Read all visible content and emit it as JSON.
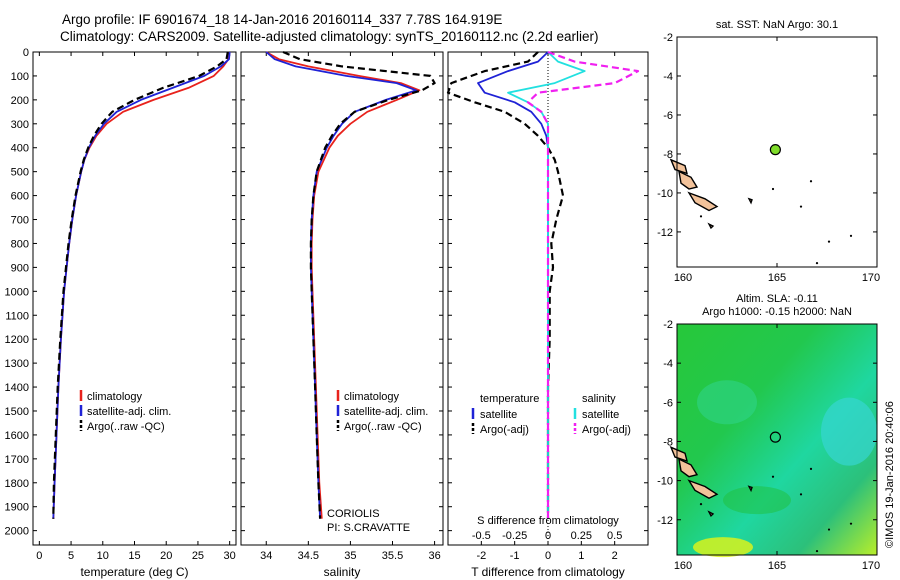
{
  "header": {
    "line1": "Argo profile: IF 6901674_18 14-Jan-2016 20160114_337 7.78S 164.919E",
    "line2": "Climatology: CARS2009. Satellite-adjusted climatology: synTS_20160112.nc (2.2d earlier)"
  },
  "colors": {
    "climatology": "#e8221c",
    "satellite": "#1f22d6",
    "argo": "#000000",
    "sat_salinity": "#22e0e0",
    "argo_salinity": "#f020f0",
    "land": "#f2c29a",
    "float_marker": "#7fdc2a"
  },
  "chart_data": [
    {
      "id": "temperature",
      "type": "line",
      "xlabel": "temperature (deg C)",
      "xlim": [
        -1,
        31
      ],
      "xticks": [
        0,
        5,
        10,
        15,
        20,
        25,
        30
      ],
      "ylim": [
        0,
        2060
      ],
      "yticks": [
        0,
        100,
        200,
        300,
        400,
        500,
        600,
        700,
        800,
        900,
        1000,
        1100,
        1200,
        1300,
        1400,
        1500,
        1600,
        1700,
        1800,
        1900,
        2000
      ],
      "legend": [
        "climatology",
        "satellite-adj. clim.",
        "Argo(..raw -QC)"
      ],
      "depth": [
        0,
        30,
        60,
        100,
        150,
        200,
        250,
        300,
        350,
        400,
        450,
        500,
        600,
        700,
        800,
        900,
        1000,
        1200,
        1400,
        1600,
        1800,
        1950
      ],
      "series": [
        {
          "name": "climatology",
          "style": "solid",
          "values": [
            30,
            29.8,
            29.0,
            27.5,
            23.5,
            18.0,
            13.2,
            10.6,
            9.0,
            7.9,
            7.1,
            6.6,
            5.8,
            5.2,
            4.7,
            4.3,
            3.9,
            3.4,
            3.0,
            2.7,
            2.4,
            2.2
          ]
        },
        {
          "name": "satellite-adj. clim.",
          "style": "solid",
          "values": [
            30,
            29.9,
            28.6,
            26.0,
            21.0,
            16.0,
            12.2,
            10.2,
            8.8,
            7.8,
            7.1,
            6.6,
            5.8,
            5.2,
            4.7,
            4.3,
            3.9,
            3.4,
            3.0,
            2.7,
            2.4,
            2.2
          ]
        },
        {
          "name": "Argo(..raw -QC)",
          "style": "dashed",
          "values": [
            29.7,
            29.5,
            28.0,
            25.2,
            19.5,
            15.0,
            11.5,
            9.8,
            8.6,
            7.7,
            7.0,
            6.5,
            5.7,
            5.1,
            4.6,
            4.2,
            3.8,
            3.3,
            2.9,
            2.6,
            2.3,
            2.2
          ]
        }
      ]
    },
    {
      "id": "salinity",
      "type": "line",
      "xlabel": "salinity",
      "xlim": [
        33.7,
        36.1
      ],
      "xticks": [
        34,
        34.5,
        35,
        35.5,
        36
      ],
      "ylim": [
        0,
        2060
      ],
      "legend": [
        "climatology",
        "satellite-adj. clim.",
        "Argo(..raw -QC)"
      ],
      "annotations": [
        "CORIOLIS",
        "PI: S.CRAVATTE"
      ],
      "depth": [
        0,
        30,
        60,
        100,
        130,
        160,
        200,
        250,
        300,
        350,
        400,
        500,
        600,
        700,
        800,
        900,
        1000,
        1200,
        1400,
        1600,
        1800,
        1950
      ],
      "series": [
        {
          "name": "climatology",
          "style": "solid",
          "values": [
            34.0,
            34.15,
            34.5,
            35.1,
            35.6,
            35.82,
            35.55,
            35.2,
            35.0,
            34.85,
            34.75,
            34.62,
            34.57,
            34.55,
            34.54,
            34.54,
            34.55,
            34.57,
            34.59,
            34.61,
            34.63,
            34.66
          ]
        },
        {
          "name": "satellite-adj. clim.",
          "style": "solid",
          "values": [
            34.0,
            34.1,
            34.35,
            34.95,
            35.55,
            35.78,
            35.42,
            35.05,
            34.9,
            34.8,
            34.72,
            34.6,
            34.56,
            34.54,
            34.53,
            34.53,
            34.54,
            34.56,
            34.58,
            34.6,
            34.62,
            34.64
          ]
        },
        {
          "name": "Argo(..raw -QC)",
          "style": "dashed",
          "values": [
            34.2,
            34.4,
            34.9,
            35.95,
            36.0,
            35.85,
            35.45,
            35.05,
            34.88,
            34.78,
            34.7,
            34.6,
            34.56,
            34.54,
            34.53,
            34.53,
            34.54,
            34.56,
            34.58,
            34.6,
            34.62,
            34.64
          ]
        }
      ]
    },
    {
      "id": "differences",
      "type": "line",
      "xlabel": "T difference from climatology",
      "x2label": "S difference from climatology",
      "xlim": [
        -3,
        3
      ],
      "xticks": [
        -2,
        -1,
        0,
        1,
        2
      ],
      "x2ticks": [
        "-0.5",
        "-0.25",
        "0",
        "0.25",
        "0.5"
      ],
      "ylim": [
        0,
        2060
      ],
      "legend_temperature": [
        "temperature",
        "satellite",
        "Argo(-adj)"
      ],
      "legend_salinity": [
        "salinity",
        "satellite",
        "Argo(-adj)"
      ],
      "depth": [
        0,
        40,
        80,
        130,
        170,
        210,
        250,
        300,
        350,
        400,
        450,
        500,
        600,
        700,
        800,
        900,
        1000,
        1200,
        1400,
        1600,
        1800,
        1950
      ],
      "series": [
        {
          "name": "satellite",
          "style": "solid",
          "color": "#1f22d6",
          "values": [
            0,
            -0.3,
            -1.2,
            -2.1,
            -1.9,
            -1.0,
            -0.5,
            -0.2,
            -0.05,
            0,
            0,
            0,
            0,
            0,
            0,
            0,
            0,
            0,
            0,
            0,
            0,
            0
          ]
        },
        {
          "name": "Argo(-adj)",
          "style": "dashed",
          "color": "#000000",
          "values": [
            -0.3,
            -0.6,
            -1.9,
            -2.9,
            -3.0,
            -2.2,
            -1.3,
            -0.7,
            -0.3,
            0,
            0.2,
            0.3,
            0.45,
            0.25,
            0.1,
            0.15,
            0.05,
            0.05,
            0,
            0,
            0,
            0
          ]
        },
        {
          "name": "satellite",
          "style": "solid",
          "color": "#22e0e0",
          "values": [
            0,
            0.3,
            1.1,
            0.2,
            -1.2,
            -0.6,
            -0.2,
            0,
            0,
            0,
            0,
            0,
            0,
            0,
            0,
            0,
            0,
            0,
            0,
            0,
            0,
            0
          ]
        },
        {
          "name": "Argo(-adj)",
          "style": "dashed",
          "color": "#f020f0",
          "values": [
            0,
            0.8,
            2.7,
            2.0,
            -0.3,
            -0.6,
            -0.2,
            0,
            0,
            0,
            0,
            0,
            0,
            0,
            0,
            0,
            0,
            0,
            0,
            0,
            0,
            0
          ]
        }
      ]
    },
    {
      "id": "sst_map",
      "type": "scatter",
      "title": "sat. SST: NaN Argo: 30.1",
      "xlim": [
        160,
        170
      ],
      "ylim": [
        -13.8,
        -2
      ],
      "xticks": [
        160,
        165,
        170
      ],
      "yticks": [
        -2,
        -4,
        -6,
        -8,
        -10,
        -12
      ],
      "point": {
        "x": 164.919,
        "y": -7.78
      }
    },
    {
      "id": "sla_map",
      "type": "heatmap",
      "title1": "Altim. SLA: -0.11",
      "title2": "Argo h1000: -0.15 h2000: NaN",
      "xlim": [
        160,
        170
      ],
      "ylim": [
        -13.8,
        -2
      ],
      "xticks": [
        160,
        165,
        170
      ],
      "yticks": [
        -2,
        -4,
        -6,
        -8,
        -10,
        -12
      ],
      "point": {
        "x": 164.919,
        "y": -7.78
      }
    }
  ],
  "footer": {
    "credit": "©IMOS 19-Jan-2016 20:40:06"
  }
}
